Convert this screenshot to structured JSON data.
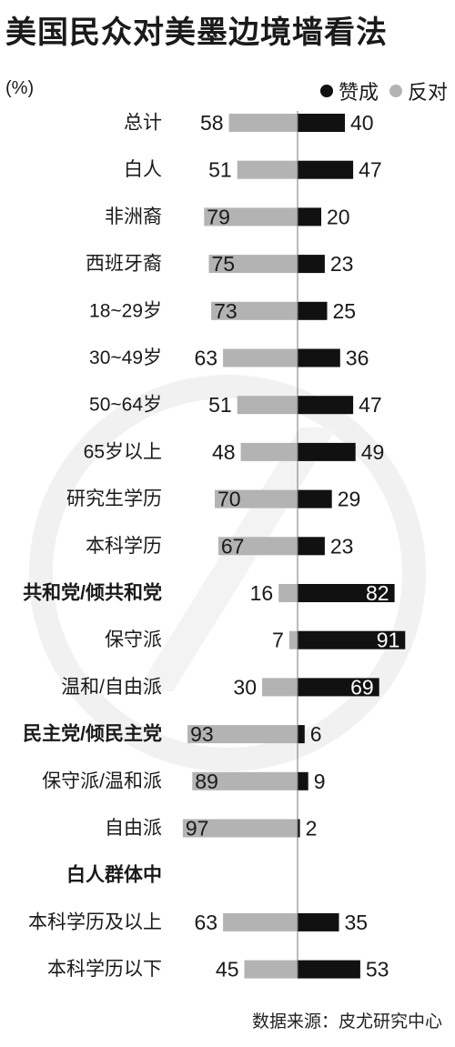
{
  "title": "美国民众对美墨边境墙看法",
  "unit": "(%)",
  "source": "数据来源：皮尤研究中心",
  "colors": {
    "support": "#111111",
    "oppose": "#b3b3b3",
    "axis": "#777777",
    "watermark": "#f1f1f1"
  },
  "chart_data": {
    "type": "bar",
    "orientation": "diverging-horizontal",
    "legend_position": "top-right",
    "series": [
      {
        "name": "赞成",
        "color": "#111111"
      },
      {
        "name": "反对",
        "color": "#b3b3b3"
      }
    ],
    "rows": [
      {
        "label": "总计",
        "bold": false,
        "oppose": 58,
        "support": 40
      },
      {
        "label": "白人",
        "bold": false,
        "oppose": 51,
        "support": 47
      },
      {
        "label": "非洲裔",
        "bold": false,
        "oppose": 79,
        "support": 20
      },
      {
        "label": "西班牙裔",
        "bold": false,
        "oppose": 75,
        "support": 23
      },
      {
        "label": "18~29岁",
        "bold": false,
        "oppose": 73,
        "support": 25
      },
      {
        "label": "30~49岁",
        "bold": false,
        "oppose": 63,
        "support": 36
      },
      {
        "label": "50~64岁",
        "bold": false,
        "oppose": 51,
        "support": 47
      },
      {
        "label": "65岁以上",
        "bold": false,
        "oppose": 48,
        "support": 49
      },
      {
        "label": "研究生学历",
        "bold": false,
        "oppose": 70,
        "support": 29
      },
      {
        "label": "本科学历",
        "bold": false,
        "oppose": 67,
        "support": 23
      },
      {
        "label": "共和党/倾共和党",
        "bold": true,
        "oppose": 16,
        "support": 82
      },
      {
        "label": "保守派",
        "bold": false,
        "oppose": 7,
        "support": 91
      },
      {
        "label": "温和/自由派",
        "bold": false,
        "oppose": 30,
        "support": 69
      },
      {
        "label": "民主党/倾民主党",
        "bold": true,
        "oppose": 93,
        "support": 6
      },
      {
        "label": "保守派/温和派",
        "bold": false,
        "oppose": 89,
        "support": 9
      },
      {
        "label": "自由派",
        "bold": false,
        "oppose": 97,
        "support": 2
      },
      {
        "label": "白人群体中",
        "bold": true,
        "oppose": null,
        "support": null
      },
      {
        "label": "本科学历及以上",
        "bold": false,
        "oppose": 63,
        "support": 35
      },
      {
        "label": "本科学历以下",
        "bold": false,
        "oppose": 45,
        "support": 53
      }
    ]
  }
}
